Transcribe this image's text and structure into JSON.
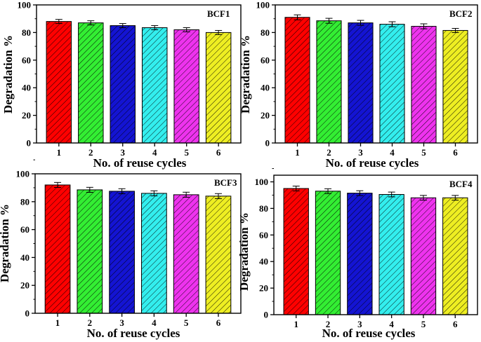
{
  "chart_data": [
    {
      "type": "bar",
      "title": "BCF1",
      "xlabel": "No. of reuse cycles",
      "ylabel": "Degradation %",
      "categories": [
        "1",
        "2",
        "3",
        "4",
        "5",
        "6"
      ],
      "values": [
        88,
        87,
        85,
        83.5,
        82,
        80
      ],
      "errors": [
        1.5,
        1.5,
        1.5,
        1.5,
        1.5,
        1.5
      ],
      "ylim": [
        0,
        100
      ],
      "yticks": [
        "0",
        "20",
        "40",
        "60",
        "80",
        "100"
      ],
      "bar_colors": [
        "#ff0000",
        "#33ee33",
        "#1414d2",
        "#33eeee",
        "#ee33ee",
        "#eeee22"
      ]
    },
    {
      "type": "bar",
      "title": "BCF2",
      "xlabel": "No. of reuse cycles",
      "ylabel": "Degradation %",
      "categories": [
        "1",
        "2",
        "3",
        "4",
        "5",
        "6"
      ],
      "values": [
        91,
        88.5,
        87,
        86,
        84.5,
        81.5
      ],
      "errors": [
        1.8,
        1.8,
        1.8,
        1.8,
        1.8,
        1.5
      ],
      "ylim": [
        0,
        100
      ],
      "yticks": [
        "0",
        "20",
        "40",
        "60",
        "80",
        "100"
      ],
      "bar_colors": [
        "#ff0000",
        "#33ee33",
        "#1414d2",
        "#33eeee",
        "#ee33ee",
        "#eeee22"
      ]
    },
    {
      "type": "bar",
      "title": "BCF3",
      "xlabel": "No. of reuse cycles",
      "ylabel": "Degradation %",
      "categories": [
        "1",
        "2",
        "3",
        "4",
        "5",
        "6"
      ],
      "values": [
        92,
        88.5,
        87.5,
        86,
        85,
        84
      ],
      "errors": [
        1.8,
        1.8,
        1.8,
        1.8,
        1.8,
        1.8
      ],
      "ylim": [
        0,
        100
      ],
      "yticks": [
        "0",
        "20",
        "40",
        "60",
        "80",
        "100"
      ],
      "bar_colors": [
        "#ff0000",
        "#33ee33",
        "#1414d2",
        "#33eeee",
        "#ee33ee",
        "#eeee22"
      ]
    },
    {
      "type": "bar",
      "title": "BCF4",
      "xlabel": "No. of reuse cycles",
      "ylabel": "Degradation %",
      "categories": [
        "1",
        "2",
        "3",
        "4",
        "5",
        "6"
      ],
      "values": [
        95,
        93,
        91.5,
        90.5,
        88,
        88
      ],
      "errors": [
        1.8,
        1.8,
        1.8,
        1.8,
        1.8,
        1.8
      ],
      "ylim": [
        0,
        105
      ],
      "yticks": [
        "0",
        "20",
        "40",
        "60",
        "80",
        "100"
      ],
      "bar_colors": [
        "#ff0000",
        "#33ee33",
        "#1414d2",
        "#33eeee",
        "#ee33ee",
        "#eeee22"
      ]
    }
  ]
}
